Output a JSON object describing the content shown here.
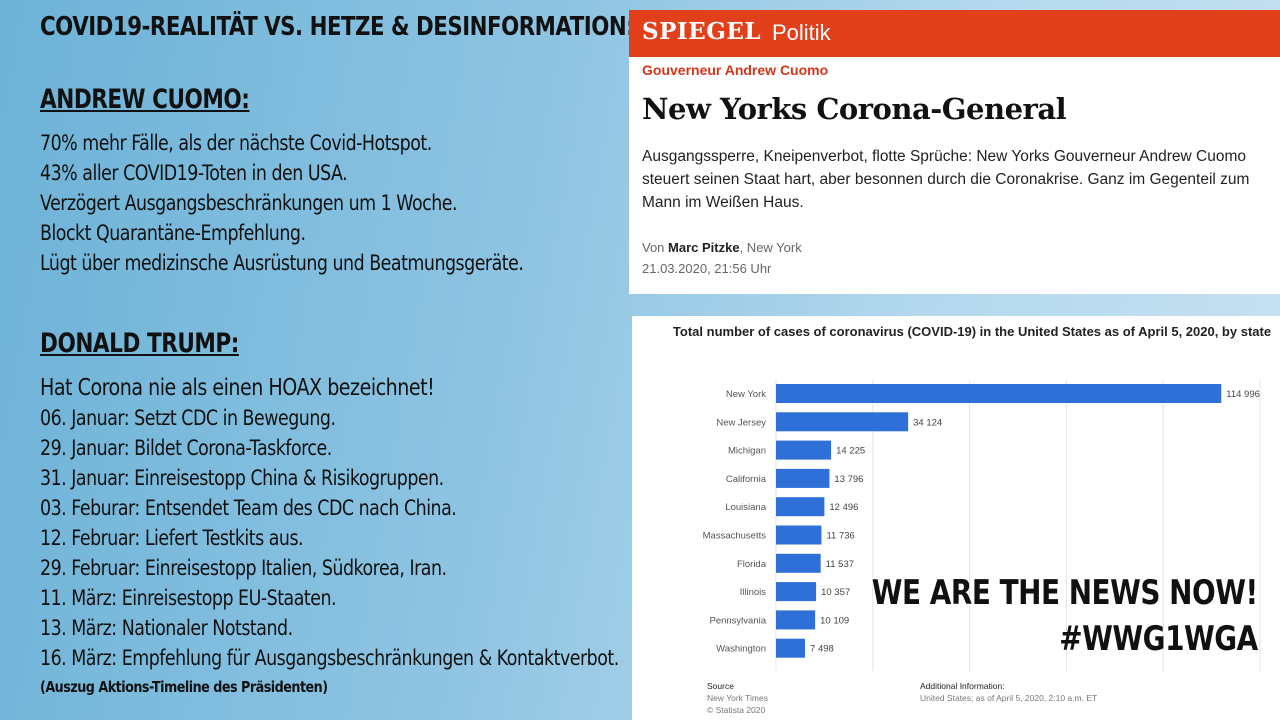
{
  "main_title": "COVID19-REALITÄT VS. HETZE & DESINFORMATION:",
  "cuomo": {
    "heading": "ANDREW CUOMO:",
    "points": [
      "70% mehr Fälle, als der nächste Covid-Hotspot.",
      "43% aller COVID19-Toten in den USA.",
      "Verzögert Ausgangsbeschränkungen um 1 Woche.",
      "Blockt Quarantäne-Empfehlung.",
      "Lügt über medizinsche Ausrüstung und Beatmungsgeräte."
    ]
  },
  "trump": {
    "heading": "DONALD TRUMP:",
    "intro": "Hat Corona nie als einen HOAX bezeichnet!",
    "timeline": [
      "06. Januar: Setzt CDC in Bewegung.",
      "29. Januar: Bildet Corona-Taskforce.",
      "31. Januar: Einreisestopp China & Risikogruppen.",
      "03. Feburar: Entsendet Team des CDC nach China.",
      "12. Februar: Liefert Testkits aus.",
      "29. Februar: Einreisestopp Italien, Südkorea, Iran.",
      "11. März: Einreisestopp EU-Staaten.",
      "13. März: Nationaler Notstand.",
      "16. März: Empfehlung für Ausgangsbeschränkungen & Kontaktverbot."
    ],
    "note": "(Auszug Aktions-Timeline des Präsidenten)"
  },
  "spiegel": {
    "logo": "SPIEGEL",
    "section": "Politik",
    "kicker": "Gouverneur Andrew Cuomo",
    "headline": "New Yorks Corona-General",
    "teaser": "Ausgangssperre, Kneipenverbot, flotte Sprüche: New Yorks Gouverneur Andrew Cuomo steuert seinen Staat hart, aber besonnen durch die Coronakrise. Ganz im Gegenteil zum Mann im Weißen Haus.",
    "by_prefix": "Von ",
    "author": "Marc Pitzke",
    "by_suffix": ", New York",
    "date": "21.03.2020, 21:56 Uhr",
    "brand_color": "#e1401a"
  },
  "chart_data": {
    "type": "bar",
    "orientation": "horizontal",
    "title": "Total number of cases of coronavirus (COVID-19) in the United States as of April 5, 2020, by state",
    "categories": [
      "New York",
      "New Jersey",
      "Michigan",
      "California",
      "Louisiana",
      "Massachusetts",
      "Florida",
      "Illinois",
      "Pennsylvania",
      "Washington"
    ],
    "values": [
      114996,
      34124,
      14225,
      13796,
      12496,
      11736,
      11537,
      10357,
      10109,
      7498
    ],
    "value_labels": [
      "114 996",
      "34 124",
      "14 225",
      "13 796",
      "12 496",
      "11 736",
      "11 537",
      "10 357",
      "10 109",
      "7 498"
    ],
    "xlim": [
      0,
      125000
    ],
    "grid": true,
    "bar_color": "#2f6fd8",
    "source_label": "Source",
    "source": "New York Times",
    "copyright": "© Statista 2020",
    "additional_label": "Additional Information:",
    "additional": "United States; as of April 5, 2020, 2:10 a.m. ET"
  },
  "slogan": {
    "line1": "WE ARE THE NEWS NOW!",
    "line2": "#WWG1WGA"
  }
}
